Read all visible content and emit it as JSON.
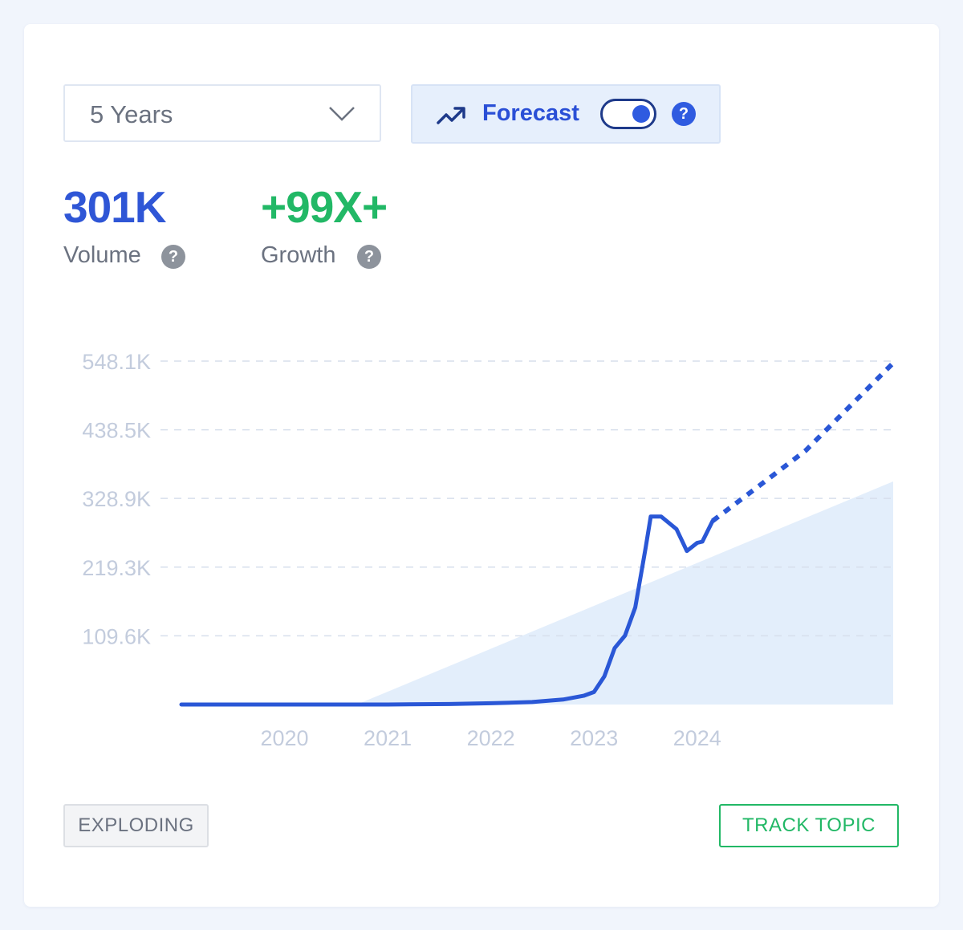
{
  "range_select": {
    "value": "5 Years",
    "chevron_icon": "chevron-down-icon"
  },
  "forecast": {
    "label": "Forecast",
    "icon": "trend-up-icon",
    "enabled": true,
    "help": "?"
  },
  "metrics": {
    "volume": {
      "value": "301K",
      "label": "Volume",
      "help": "?"
    },
    "growth": {
      "value": "+99X+",
      "label": "Growth",
      "help": "?"
    }
  },
  "chart_data": {
    "type": "line",
    "title": "",
    "xlabel": "",
    "ylabel": "",
    "y_tick_labels": [
      "548.1K",
      "438.5K",
      "328.9K",
      "219.3K",
      "109.6K"
    ],
    "y_ticks": [
      548100,
      438500,
      328900,
      219300,
      109600
    ],
    "x_tick_labels": [
      "2020",
      "2021",
      "2022",
      "2023",
      "2024"
    ],
    "x_ticks": [
      2020,
      2021,
      2022,
      2023,
      2024
    ],
    "xlim": [
      2019,
      2025.9
    ],
    "ylim": [
      0,
      548100
    ],
    "grid": "horizontal dashed",
    "colors": {
      "line": "#2a57d6",
      "band": "#e3eefb",
      "grid": "#d7dfec",
      "ticks": "#c3ccdd"
    },
    "series": [
      {
        "style": "solid",
        "x": [
          2019.0,
          2020.0,
          2021.0,
          2021.6,
          2022.0,
          2022.4,
          2022.7,
          2022.9,
          2023.0,
          2023.1,
          2023.2,
          2023.3,
          2023.4,
          2023.5,
          2023.55,
          2023.65,
          2023.8,
          2023.9,
          2024.0,
          2024.05,
          2024.15
        ],
        "y": [
          0,
          0,
          0,
          800,
          2000,
          4000,
          8000,
          14000,
          20000,
          45000,
          90000,
          110000,
          155000,
          250000,
          300000,
          300000,
          280000,
          245000,
          258000,
          260000,
          293000
        ]
      },
      {
        "style": "dashed",
        "name": "Forecast",
        "x": [
          2024.15,
          2024.6,
          2025.05,
          2025.9
        ],
        "y": [
          293000,
          349000,
          405000,
          545000
        ]
      }
    ],
    "band": {
      "style": "shaded trend area",
      "x": [
        2020.7,
        2025.9
      ],
      "y_upper": [
        0,
        356000
      ]
    }
  },
  "badge": {
    "label": "EXPLODING"
  },
  "track_button": {
    "label": "TRACK TOPIC"
  }
}
